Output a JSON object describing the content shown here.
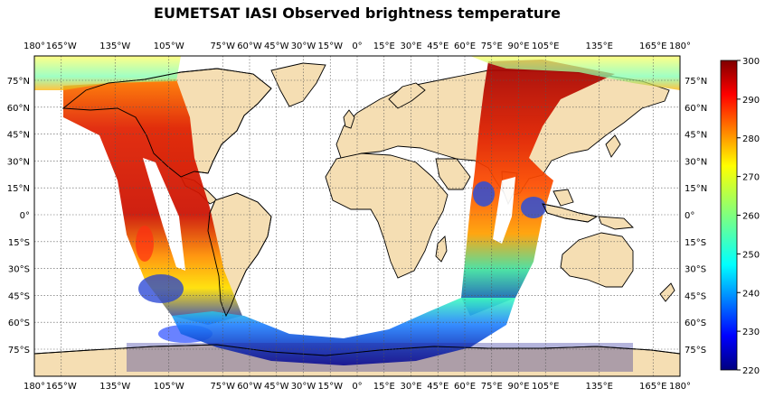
{
  "map": {
    "title": "EUMETSAT IASI Observed brightness temperature",
    "projection": "equirectangular",
    "land_color": "#f5deb3",
    "coastline_color": "#000000",
    "gridline_style": "dotted",
    "lon_labels": [
      "180°",
      "165°W",
      "135°W",
      "105°W",
      "75°W",
      "60°W",
      "45°W",
      "30°W",
      "15°W",
      "0°",
      "15°E",
      "30°E",
      "45°E",
      "60°E",
      "75°E",
      "90°E",
      "105°E",
      "135°E",
      "165°E",
      "180°"
    ],
    "lon_values": [
      -180,
      -165,
      -135,
      -105,
      -75,
      -60,
      -45,
      -30,
      -15,
      0,
      15,
      30,
      45,
      60,
      75,
      90,
      105,
      135,
      165,
      180
    ],
    "lat_labels": [
      "75°N",
      "60°N",
      "45°N",
      "30°N",
      "15°N",
      "0°",
      "15°S",
      "30°S",
      "45°S",
      "60°S",
      "75°S"
    ],
    "lat_values": [
      75,
      60,
      45,
      30,
      15,
      0,
      -15,
      -30,
      -45,
      -60,
      -75
    ]
  },
  "colorbar": {
    "ticks": [
      "300",
      "290",
      "280",
      "270",
      "260",
      "250",
      "240",
      "230",
      "220"
    ],
    "min": 220,
    "max": 300,
    "colormap": "jet"
  }
}
